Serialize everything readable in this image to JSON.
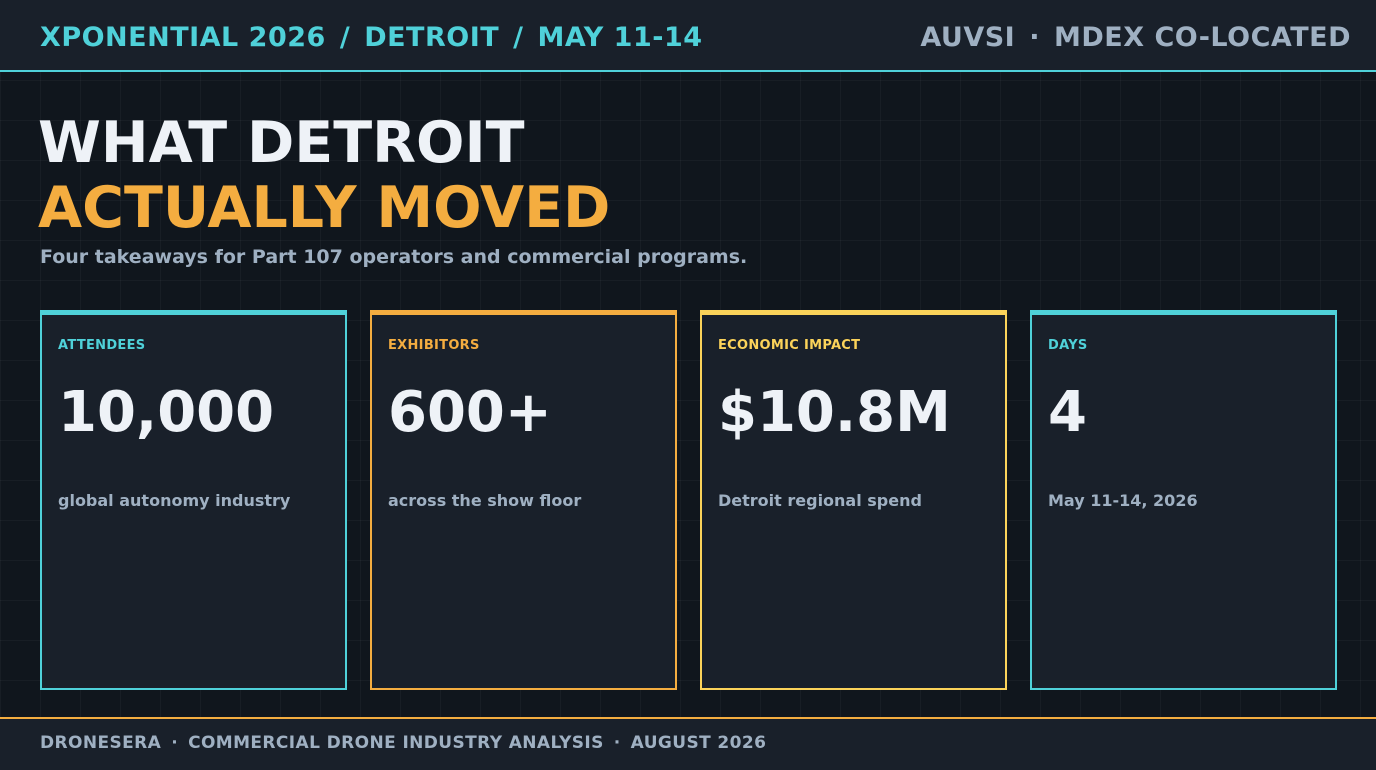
{
  "header": {
    "event": "XPONENTIAL 2026",
    "separator": "/",
    "city": "DETROIT",
    "dates": "MAY 11-14",
    "org": "AUVSI",
    "dot": "·",
    "colocated": "MDEX CO-LOCATED"
  },
  "hero": {
    "title_line1": "WHAT DETROIT",
    "title_line2": "ACTUALLY MOVED",
    "subtitle": "Four takeaways for Part 107 operators and commercial programs."
  },
  "cards": [
    {
      "label": "ATTENDEES",
      "value": "10,000",
      "desc": "global autonomy industry",
      "accent": "#4fd1d9"
    },
    {
      "label": "EXHIBITORS",
      "value": "600+",
      "desc": "across the show floor",
      "accent": "#f4ad40"
    },
    {
      "label": "ECONOMIC IMPACT",
      "value": "$10.8M",
      "desc": "Detroit regional spend",
      "accent": "#fbd35a"
    },
    {
      "label": "DAYS",
      "value": "4",
      "desc": "May 11-14, 2026",
      "accent": "#4fd1d9"
    }
  ],
  "footer": {
    "brand": "DRONESERA",
    "dot": "·",
    "section": "COMMERCIAL DRONE INDUSTRY ANALYSIS",
    "date": "AUGUST 2026"
  },
  "colors": {
    "background": "#10161d",
    "panel": "#19202a",
    "teal": "#4fd1d9",
    "orange": "#f4ad40",
    "yellow": "#fbd35a",
    "text_light": "#eef2f7",
    "text_muted": "#9fb0c2"
  }
}
